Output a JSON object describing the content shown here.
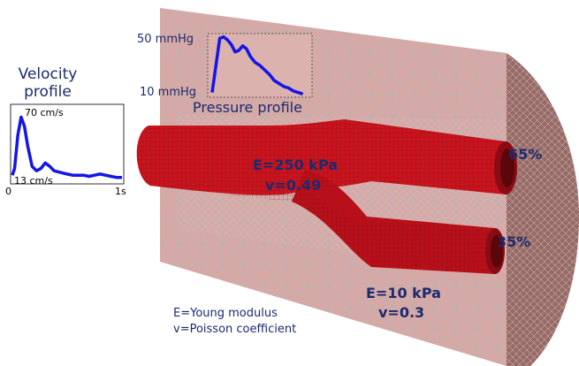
{
  "colors": {
    "text": "#1c2a6e",
    "curve": "#1515e6",
    "vessel": "#c8141e",
    "tissue": "#d7a9a6",
    "tissue_mesh": "#b3b3b3"
  },
  "velocity_panel": {
    "title_line1": "Velocity",
    "title_line2": "profile",
    "y_max_label": "70 cm/s",
    "y_min_label": "13 cm/s",
    "x_start_label": "0",
    "x_end_label": "1s"
  },
  "pressure_panel": {
    "title": "Pressure profile",
    "y_max_label": "50 mmHg",
    "y_min_label": "10 mmHg"
  },
  "chart_data": [
    {
      "type": "line",
      "title": "Velocity profile",
      "xlim": [
        0,
        1
      ],
      "ylim": [
        13,
        70
      ],
      "x": [
        0,
        0.02,
        0.05,
        0.08,
        0.11,
        0.14,
        0.18,
        0.22,
        0.26,
        0.3,
        0.34,
        0.38,
        0.42,
        0.46,
        0.5,
        0.55,
        0.6,
        0.65,
        0.7,
        0.75,
        0.8,
        0.85,
        0.9,
        0.95,
        1.0
      ],
      "series": [
        {
          "values": [
            16,
            22,
            52,
            68,
            60,
            42,
            24,
            20,
            22,
            27,
            24,
            20,
            19,
            18,
            17,
            16,
            16,
            16,
            15,
            16,
            17,
            16,
            15,
            14,
            14
          ]
        }
      ]
    },
    {
      "type": "line",
      "title": "Pressure profile",
      "xlim": [
        0,
        1
      ],
      "ylim": [
        10,
        50
      ],
      "x": [
        0,
        0.04,
        0.08,
        0.12,
        0.16,
        0.2,
        0.24,
        0.28,
        0.32,
        0.36,
        0.4,
        0.45,
        0.5,
        0.55,
        0.6,
        0.65,
        0.7,
        0.75,
        0.8,
        0.85,
        0.9,
        0.95
      ],
      "series": [
        {
          "values": [
            12,
            30,
            48,
            49,
            47,
            44,
            39,
            40,
            43,
            41,
            36,
            32,
            30,
            27,
            24,
            20,
            18,
            16,
            15,
            13,
            12,
            11
          ]
        }
      ]
    }
  ],
  "annotations": {
    "upper_branch_flow": "65%",
    "lower_branch_flow": "35%",
    "vessel_stiff_E": "E=250 kPa",
    "vessel_stiff_nu": "v=0.49",
    "tissue_E": "E=10 kPa",
    "tissue_nu": "v=0.3"
  },
  "legend": {
    "line1": "E=Young modulus",
    "line2": "v=Poisson coefficient"
  }
}
